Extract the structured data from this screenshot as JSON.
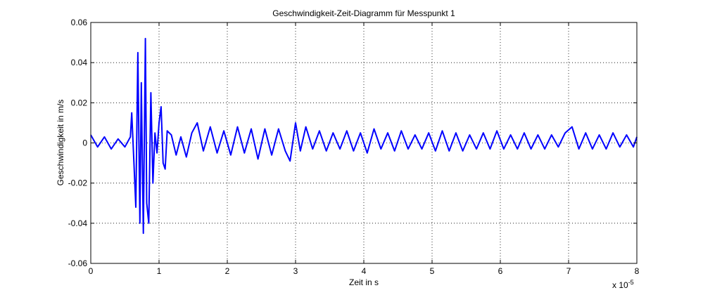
{
  "chart_data": {
    "type": "line",
    "title": "Geschwindigkeit-Zeit-Diagramm für Messpunkt 1",
    "xlabel": "Zeit in s",
    "ylabel": "Geschwindigkeit in m/s",
    "x_exponent_base": "x 10",
    "x_exponent_power": "-5",
    "xlim": [
      0,
      8
    ],
    "ylim": [
      -0.06,
      0.06
    ],
    "x_ticks": [
      0,
      1,
      2,
      3,
      4,
      5,
      6,
      7,
      8
    ],
    "x_tick_labels": [
      "0",
      "1",
      "2",
      "3",
      "4",
      "5",
      "6",
      "7",
      "8"
    ],
    "y_ticks": [
      -0.06,
      -0.04,
      -0.02,
      0,
      0.02,
      0.04,
      0.06
    ],
    "y_tick_labels": [
      "-0.06",
      "-0.04",
      "-0.02",
      "0",
      "0.02",
      "0.04",
      "0.06"
    ],
    "grid": true,
    "series": [
      {
        "color": "#0000ff",
        "x": [
          0.0,
          0.1,
          0.2,
          0.3,
          0.4,
          0.5,
          0.58,
          0.6,
          0.63,
          0.66,
          0.69,
          0.72,
          0.74,
          0.77,
          0.8,
          0.82,
          0.85,
          0.88,
          0.91,
          0.94,
          0.97,
          1.0,
          1.03,
          1.06,
          1.09,
          1.12,
          1.18,
          1.25,
          1.32,
          1.4,
          1.48,
          1.56,
          1.65,
          1.75,
          1.85,
          1.95,
          2.05,
          2.15,
          2.25,
          2.35,
          2.45,
          2.55,
          2.65,
          2.75,
          2.85,
          2.92,
          3.0,
          3.07,
          3.15,
          3.25,
          3.35,
          3.45,
          3.55,
          3.65,
          3.75,
          3.85,
          3.95,
          4.05,
          4.15,
          4.25,
          4.35,
          4.45,
          4.55,
          4.65,
          4.75,
          4.85,
          4.95,
          5.05,
          5.15,
          5.25,
          5.35,
          5.45,
          5.55,
          5.65,
          5.75,
          5.85,
          5.95,
          6.05,
          6.15,
          6.25,
          6.35,
          6.45,
          6.55,
          6.65,
          6.75,
          6.85,
          6.95,
          7.05,
          7.15,
          7.25,
          7.35,
          7.45,
          7.55,
          7.65,
          7.75,
          7.85,
          7.95,
          8.0
        ],
        "y": [
          0.004,
          -0.002,
          0.003,
          -0.003,
          0.002,
          -0.002,
          0.003,
          0.015,
          -0.008,
          -0.032,
          0.045,
          -0.04,
          0.03,
          -0.045,
          0.052,
          -0.03,
          -0.04,
          0.025,
          -0.02,
          0.005,
          -0.005,
          0.01,
          0.018,
          -0.01,
          -0.013,
          0.006,
          0.004,
          -0.006,
          0.003,
          -0.007,
          0.005,
          0.01,
          -0.004,
          0.008,
          -0.005,
          0.006,
          -0.006,
          0.008,
          -0.005,
          0.007,
          -0.008,
          0.007,
          -0.006,
          0.007,
          -0.004,
          -0.009,
          0.01,
          -0.004,
          0.008,
          -0.003,
          0.006,
          -0.004,
          0.005,
          -0.003,
          0.006,
          -0.004,
          0.005,
          -0.005,
          0.007,
          -0.003,
          0.005,
          -0.004,
          0.006,
          -0.003,
          0.004,
          -0.003,
          0.005,
          -0.004,
          0.006,
          -0.004,
          0.005,
          -0.004,
          0.004,
          -0.003,
          0.005,
          -0.003,
          0.006,
          -0.003,
          0.004,
          -0.003,
          0.005,
          -0.003,
          0.004,
          -0.003,
          0.004,
          -0.002,
          0.005,
          0.008,
          -0.003,
          0.005,
          -0.003,
          0.004,
          -0.003,
          0.005,
          -0.002,
          0.004,
          -0.002,
          0.003
        ]
      }
    ]
  }
}
